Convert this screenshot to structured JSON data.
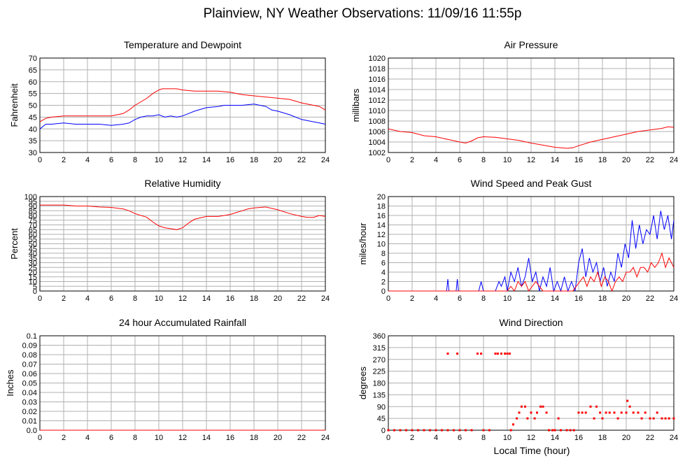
{
  "page": {
    "title": "Plainview, NY Weather Observations: 11/09/16 11:55p",
    "bottom_xlabel": "Local Time (hour)"
  },
  "colors": {
    "primary": "#ff0000",
    "secondary": "#0000ff",
    "grid": "#b0b0b0",
    "frame": "#000000"
  },
  "chart_data": [
    {
      "id": "temp",
      "type": "line",
      "title": "Temperature and Dewpoint",
      "xlabel": "",
      "ylabel": "Fahrenheit",
      "xlim": [
        0,
        24
      ],
      "ylim": [
        30,
        70
      ],
      "xticks": [
        0,
        2,
        4,
        6,
        8,
        10,
        12,
        14,
        16,
        18,
        20,
        22,
        24
      ],
      "yticks": [
        "30",
        "35",
        "40",
        "45",
        "50",
        "55",
        "60",
        "65",
        "70"
      ],
      "grid": true,
      "series": [
        {
          "color": "#ff0000",
          "x": [
            0,
            0.5,
            1,
            2,
            3,
            4,
            5,
            6,
            7,
            7.5,
            8,
            9,
            9.5,
            10,
            10.3,
            11,
            11.5,
            12,
            13,
            14,
            15,
            16,
            17,
            18,
            19,
            20,
            21,
            22,
            23,
            23.5,
            24
          ],
          "y": [
            43,
            44.5,
            45,
            45.5,
            45.5,
            45.5,
            45.5,
            45.5,
            46.5,
            48,
            50,
            53,
            55,
            56.5,
            57,
            57,
            57,
            56.5,
            56,
            56,
            56,
            55.5,
            54.5,
            54,
            53.5,
            53,
            52.5,
            51,
            50,
            49.5,
            48
          ]
        },
        {
          "color": "#0000ff",
          "x": [
            0,
            0.5,
            1,
            2,
            3,
            4,
            5,
            6,
            7,
            7.5,
            8,
            8.5,
            9,
            9.5,
            10,
            10.5,
            11,
            11.5,
            12,
            12.5,
            13,
            14,
            15,
            15.5,
            16,
            17,
            18,
            18.5,
            19,
            19.5,
            20,
            21,
            22,
            23,
            23.5,
            24
          ],
          "y": [
            40,
            42,
            42,
            42.5,
            42,
            42,
            42,
            41.5,
            42,
            42.5,
            44,
            45,
            45.5,
            45.5,
            46,
            45,
            45.5,
            45,
            45.5,
            46.5,
            47.5,
            49,
            49.5,
            50,
            50,
            50,
            50.5,
            50,
            49.5,
            48,
            47.5,
            46,
            44,
            43,
            42.5,
            42
          ]
        }
      ]
    },
    {
      "id": "pressure",
      "type": "line",
      "title": "Air Pressure",
      "xlabel": "",
      "ylabel": "millibars",
      "xlim": [
        0,
        24
      ],
      "ylim": [
        1002,
        1020
      ],
      "xticks": [
        0,
        2,
        4,
        6,
        8,
        10,
        12,
        14,
        16,
        18,
        20,
        22,
        24
      ],
      "yticks": [
        "1002",
        "1004",
        "1006",
        "1008",
        "1010",
        "1012",
        "1014",
        "1016",
        "1018",
        "1020"
      ],
      "grid": true,
      "series": [
        {
          "color": "#ff0000",
          "x": [
            0,
            1,
            2,
            3,
            4,
            5,
            6,
            6.5,
            7,
            7.5,
            8,
            9,
            10,
            11,
            12,
            13,
            14,
            15,
            15.5,
            16,
            17,
            18,
            19,
            20,
            21,
            22,
            23,
            23.5,
            24
          ],
          "y": [
            1006.5,
            1006,
            1005.8,
            1005.2,
            1005,
            1004.5,
            1004,
            1003.8,
            1004.2,
            1004.8,
            1005,
            1004.9,
            1004.6,
            1004.3,
            1003.8,
            1003.4,
            1003,
            1002.8,
            1002.9,
            1003.3,
            1004,
            1004.5,
            1005,
            1005.5,
            1006,
            1006.3,
            1006.6,
            1006.9,
            1006.8
          ]
        }
      ]
    },
    {
      "id": "humidity",
      "type": "line",
      "title": "Relative Humidity",
      "xlabel": "",
      "ylabel": "Percent",
      "xlim": [
        0,
        24
      ],
      "ylim": [
        0,
        100
      ],
      "xticks": [
        0,
        2,
        4,
        6,
        8,
        10,
        12,
        14,
        16,
        18,
        20,
        22,
        24
      ],
      "yticks": [
        "0",
        "5",
        "10",
        "15",
        "20",
        "25",
        "30",
        "35",
        "40",
        "45",
        "50",
        "55",
        "60",
        "65",
        "70",
        "75",
        "80",
        "85",
        "90",
        "95",
        "100"
      ],
      "grid": true,
      "series": [
        {
          "color": "#ff0000",
          "x": [
            0,
            1,
            2,
            2.5,
            3,
            4,
            5,
            6,
            7,
            7.5,
            8,
            9,
            9.5,
            10,
            10.5,
            11,
            11.5,
            12,
            12.5,
            13,
            14,
            15,
            16,
            16.5,
            17,
            17.5,
            18,
            19,
            20,
            21,
            22,
            22.5,
            23,
            23.5,
            24
          ],
          "y": [
            91,
            91,
            91,
            90.5,
            90,
            90,
            89,
            88.5,
            87,
            85,
            82,
            78,
            73,
            69,
            67,
            66,
            65,
            67,
            72,
            76,
            79,
            79,
            81,
            83,
            85,
            87,
            88,
            89,
            86,
            82,
            79,
            78,
            78,
            80,
            79
          ]
        }
      ]
    },
    {
      "id": "wind",
      "type": "line",
      "title": "Wind Speed and Peak Gust",
      "xlabel": "",
      "ylabel": "miles/hour",
      "xlim": [
        0,
        24
      ],
      "ylim": [
        0,
        20
      ],
      "xticks": [
        0,
        2,
        4,
        6,
        8,
        10,
        12,
        14,
        16,
        18,
        20,
        22,
        24
      ],
      "yticks": [
        "0",
        "2",
        "4",
        "6",
        "8",
        "10",
        "12",
        "14",
        "16",
        "18",
        "20"
      ],
      "grid": true,
      "series": [
        {
          "color": "#0000ff",
          "x": [
            0,
            4.9,
            5,
            5.1,
            5.7,
            5.8,
            5.9,
            7.6,
            7.8,
            8,
            9,
            9.3,
            9.5,
            9.8,
            10,
            10.3,
            10.6,
            10.9,
            11.2,
            11.5,
            11.8,
            12.1,
            12.4,
            12.7,
            13,
            13.3,
            13.6,
            13.9,
            14.2,
            14.5,
            14.8,
            15.1,
            15.4,
            15.7,
            16,
            16.3,
            16.6,
            16.9,
            17.2,
            17.5,
            17.8,
            18.1,
            18.4,
            18.7,
            19,
            19.3,
            19.6,
            19.9,
            20.2,
            20.5,
            20.8,
            21.1,
            21.4,
            21.7,
            22,
            22.3,
            22.6,
            22.9,
            23.2,
            23.5,
            23.8,
            24
          ],
          "y": [
            0,
            0,
            2.5,
            0,
            0,
            2.5,
            0,
            0,
            2,
            0,
            0,
            2,
            1,
            3,
            0,
            4,
            2,
            5,
            1,
            3,
            7,
            2,
            4,
            0,
            3,
            1,
            5,
            0,
            2,
            0,
            3,
            0,
            2,
            0,
            6,
            9,
            3,
            7,
            4,
            6,
            2,
            5,
            1,
            4,
            2,
            8,
            5,
            10,
            7,
            15,
            9,
            14,
            10,
            13,
            12,
            16,
            11,
            17,
            13,
            16,
            11,
            15
          ]
        },
        {
          "color": "#ff0000",
          "x": [
            0,
            10,
            10.3,
            10.6,
            10.9,
            11.2,
            11.5,
            11.8,
            12.1,
            12.4,
            12.7,
            13,
            15.5,
            15.8,
            16.1,
            16.4,
            16.7,
            17,
            17.3,
            17.6,
            17.9,
            18.2,
            18.5,
            18.8,
            19.1,
            19.4,
            19.7,
            20,
            20.3,
            20.6,
            20.9,
            21.2,
            21.5,
            21.8,
            22.1,
            22.4,
            22.7,
            23,
            23.3,
            23.6,
            24
          ],
          "y": [
            0,
            0,
            1,
            0,
            2,
            1,
            2,
            0,
            1,
            2,
            1,
            0,
            0,
            1,
            2,
            3,
            1,
            3,
            2,
            4,
            1,
            3,
            2,
            0,
            2,
            3,
            2,
            4,
            4,
            5,
            3,
            5,
            5,
            4,
            6,
            5,
            6,
            8,
            5,
            7,
            5
          ]
        }
      ]
    },
    {
      "id": "rain",
      "type": "line",
      "title": "24 hour Accumulated Rainfall",
      "xlabel": "",
      "ylabel": "Inches",
      "xlim": [
        0,
        24
      ],
      "ylim": [
        0,
        0.1
      ],
      "xticks": [
        0,
        2,
        4,
        6,
        8,
        10,
        12,
        14,
        16,
        18,
        20,
        22,
        24
      ],
      "yticks": [
        "0.0",
        "0.01",
        "0.02",
        "0.03",
        "0.04",
        "0.05",
        "0.06",
        "0.07",
        "0.08",
        "0.09",
        "0.1"
      ],
      "grid": true,
      "series": [
        {
          "color": "#ff0000",
          "x": [
            0,
            24
          ],
          "y": [
            0,
            0
          ]
        }
      ]
    },
    {
      "id": "direction",
      "type": "scatter",
      "title": "Wind Direction",
      "xlabel": "Local Time (hour)",
      "ylabel": "degrees",
      "xlim": [
        0,
        24
      ],
      "ylim": [
        0,
        360
      ],
      "xticks": [
        0,
        2,
        4,
        6,
        8,
        10,
        12,
        14,
        16,
        18,
        20,
        22,
        24
      ],
      "yticks": [
        "0",
        "45",
        "90",
        "135",
        "180",
        "225",
        "270",
        "315",
        "360"
      ],
      "grid": true,
      "series": [
        {
          "color": "#ff0000",
          "points": [
            [
              0,
              0
            ],
            [
              0.5,
              0
            ],
            [
              1,
              0
            ],
            [
              1.5,
              0
            ],
            [
              2,
              0
            ],
            [
              2.5,
              0
            ],
            [
              3,
              0
            ],
            [
              3.5,
              0
            ],
            [
              4,
              0
            ],
            [
              4.5,
              0
            ],
            [
              5,
              0
            ],
            [
              5,
              292
            ],
            [
              5.5,
              0
            ],
            [
              5.8,
              292
            ],
            [
              6,
              0
            ],
            [
              6.5,
              0
            ],
            [
              7,
              0
            ],
            [
              7.5,
              292
            ],
            [
              7.8,
              292
            ],
            [
              8,
              0
            ],
            [
              8.5,
              0
            ],
            [
              9,
              292
            ],
            [
              9.2,
              292
            ],
            [
              9.5,
              292
            ],
            [
              9.8,
              292
            ],
            [
              10,
              292
            ],
            [
              10.2,
              292
            ],
            [
              10.3,
              0
            ],
            [
              10.5,
              22
            ],
            [
              10.8,
              45
            ],
            [
              11,
              67
            ],
            [
              11.2,
              90
            ],
            [
              11.5,
              90
            ],
            [
              11.7,
              45
            ],
            [
              12,
              67
            ],
            [
              12.3,
              45
            ],
            [
              12.5,
              67
            ],
            [
              12.8,
              90
            ],
            [
              13,
              90
            ],
            [
              13.3,
              67
            ],
            [
              13.5,
              0
            ],
            [
              13.8,
              0
            ],
            [
              14,
              0
            ],
            [
              14.3,
              45
            ],
            [
              14.5,
              0
            ],
            [
              15,
              0
            ],
            [
              15.3,
              0
            ],
            [
              15.6,
              0
            ],
            [
              16,
              67
            ],
            [
              16.3,
              67
            ],
            [
              16.6,
              67
            ],
            [
              17,
              90
            ],
            [
              17.3,
              45
            ],
            [
              17.5,
              90
            ],
            [
              17.8,
              67
            ],
            [
              18,
              45
            ],
            [
              18.3,
              67
            ],
            [
              18.6,
              67
            ],
            [
              19,
              67
            ],
            [
              19.3,
              45
            ],
            [
              19.6,
              67
            ],
            [
              20,
              67
            ],
            [
              20.1,
              112
            ],
            [
              20.3,
              90
            ],
            [
              20.6,
              67
            ],
            [
              21,
              67
            ],
            [
              21.3,
              45
            ],
            [
              21.6,
              67
            ],
            [
              22,
              45
            ],
            [
              22.3,
              45
            ],
            [
              22.6,
              67
            ],
            [
              23,
              45
            ],
            [
              23.3,
              45
            ],
            [
              23.6,
              45
            ],
            [
              24,
              45
            ]
          ]
        }
      ]
    }
  ]
}
